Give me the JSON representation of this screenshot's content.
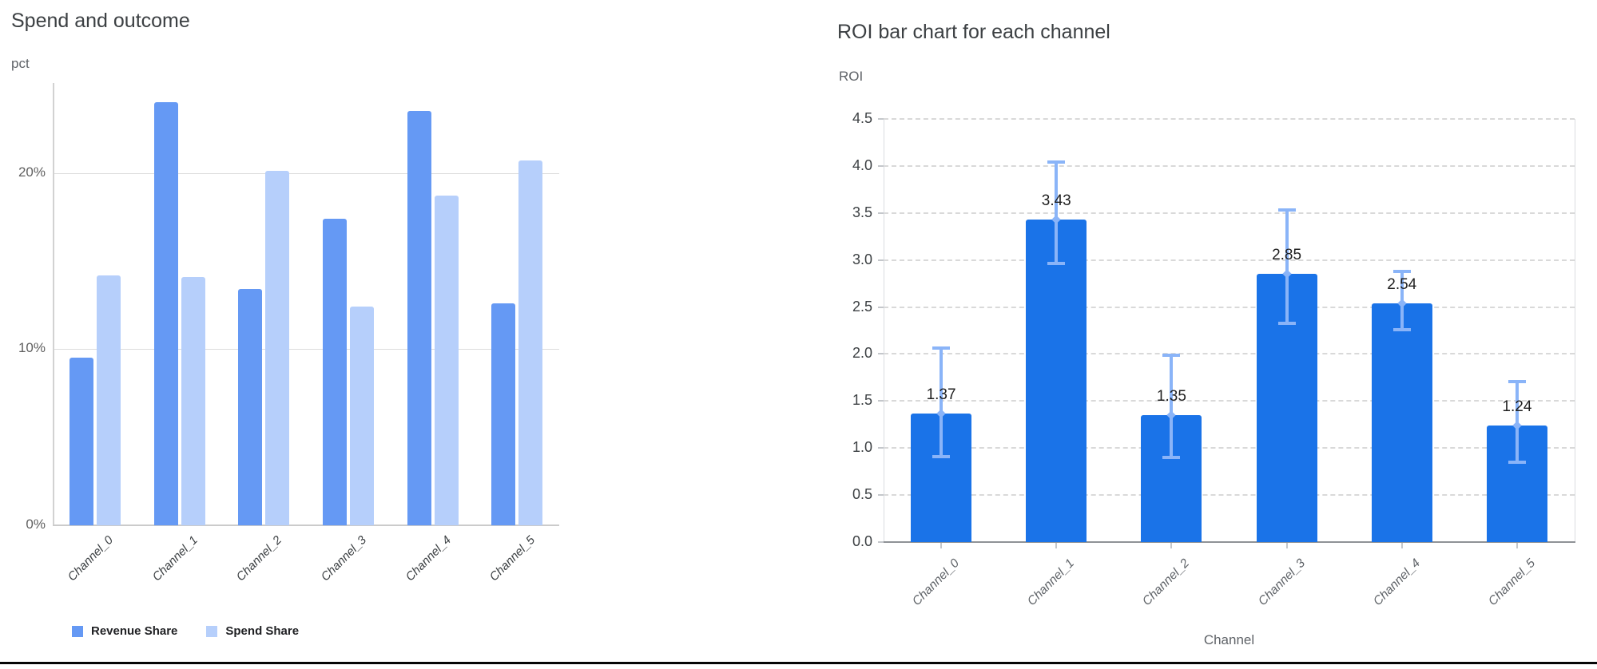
{
  "chart_data": [
    {
      "type": "bar",
      "title": "Spend and outcome",
      "ylabel": "pct",
      "xlabel": "",
      "categories": [
        "Channel_0",
        "Channel_1",
        "Channel_2",
        "Channel_3",
        "Channel_4",
        "Channel_5"
      ],
      "series": [
        {
          "name": "Revenue Share",
          "color": "#6599f4",
          "values": [
            9.5,
            24.0,
            13.4,
            17.4,
            23.5,
            12.6
          ]
        },
        {
          "name": "Spend Share",
          "color": "#b6cffb",
          "values": [
            14.2,
            14.1,
            20.1,
            12.4,
            18.7,
            20.7
          ]
        }
      ],
      "yticks": [
        {
          "label": "0%",
          "value": 0
        },
        {
          "label": "10%",
          "value": 10
        },
        {
          "label": "20%",
          "value": 20
        }
      ],
      "ylim": [
        0,
        25.1
      ],
      "grid": true,
      "legend_position": "bottom"
    },
    {
      "type": "bar",
      "title": "ROI bar chart for each channel",
      "ylabel": "ROI",
      "xlabel": "Channel",
      "categories": [
        "Channel_0",
        "Channel_1",
        "Channel_2",
        "Channel_3",
        "Channel_4",
        "Channel_5"
      ],
      "values": [
        1.37,
        3.43,
        1.35,
        2.85,
        2.54,
        1.24
      ],
      "value_labels": [
        "1.37",
        "3.43",
        "1.35",
        "2.85",
        "2.54",
        "1.24"
      ],
      "error_low": [
        0.91,
        2.96,
        0.9,
        2.33,
        2.26,
        0.85
      ],
      "error_high": [
        2.06,
        4.04,
        1.99,
        3.53,
        2.88,
        1.71
      ],
      "bar_color": "#1a73e8",
      "error_color": "#8ab4f8",
      "yticks": [
        "0.0",
        "0.5",
        "1.0",
        "1.5",
        "2.0",
        "2.5",
        "3.0",
        "3.5",
        "4.0",
        "4.5"
      ],
      "ylim": [
        0,
        4.5
      ],
      "grid": "dashed",
      "legend_position": "none"
    }
  ]
}
